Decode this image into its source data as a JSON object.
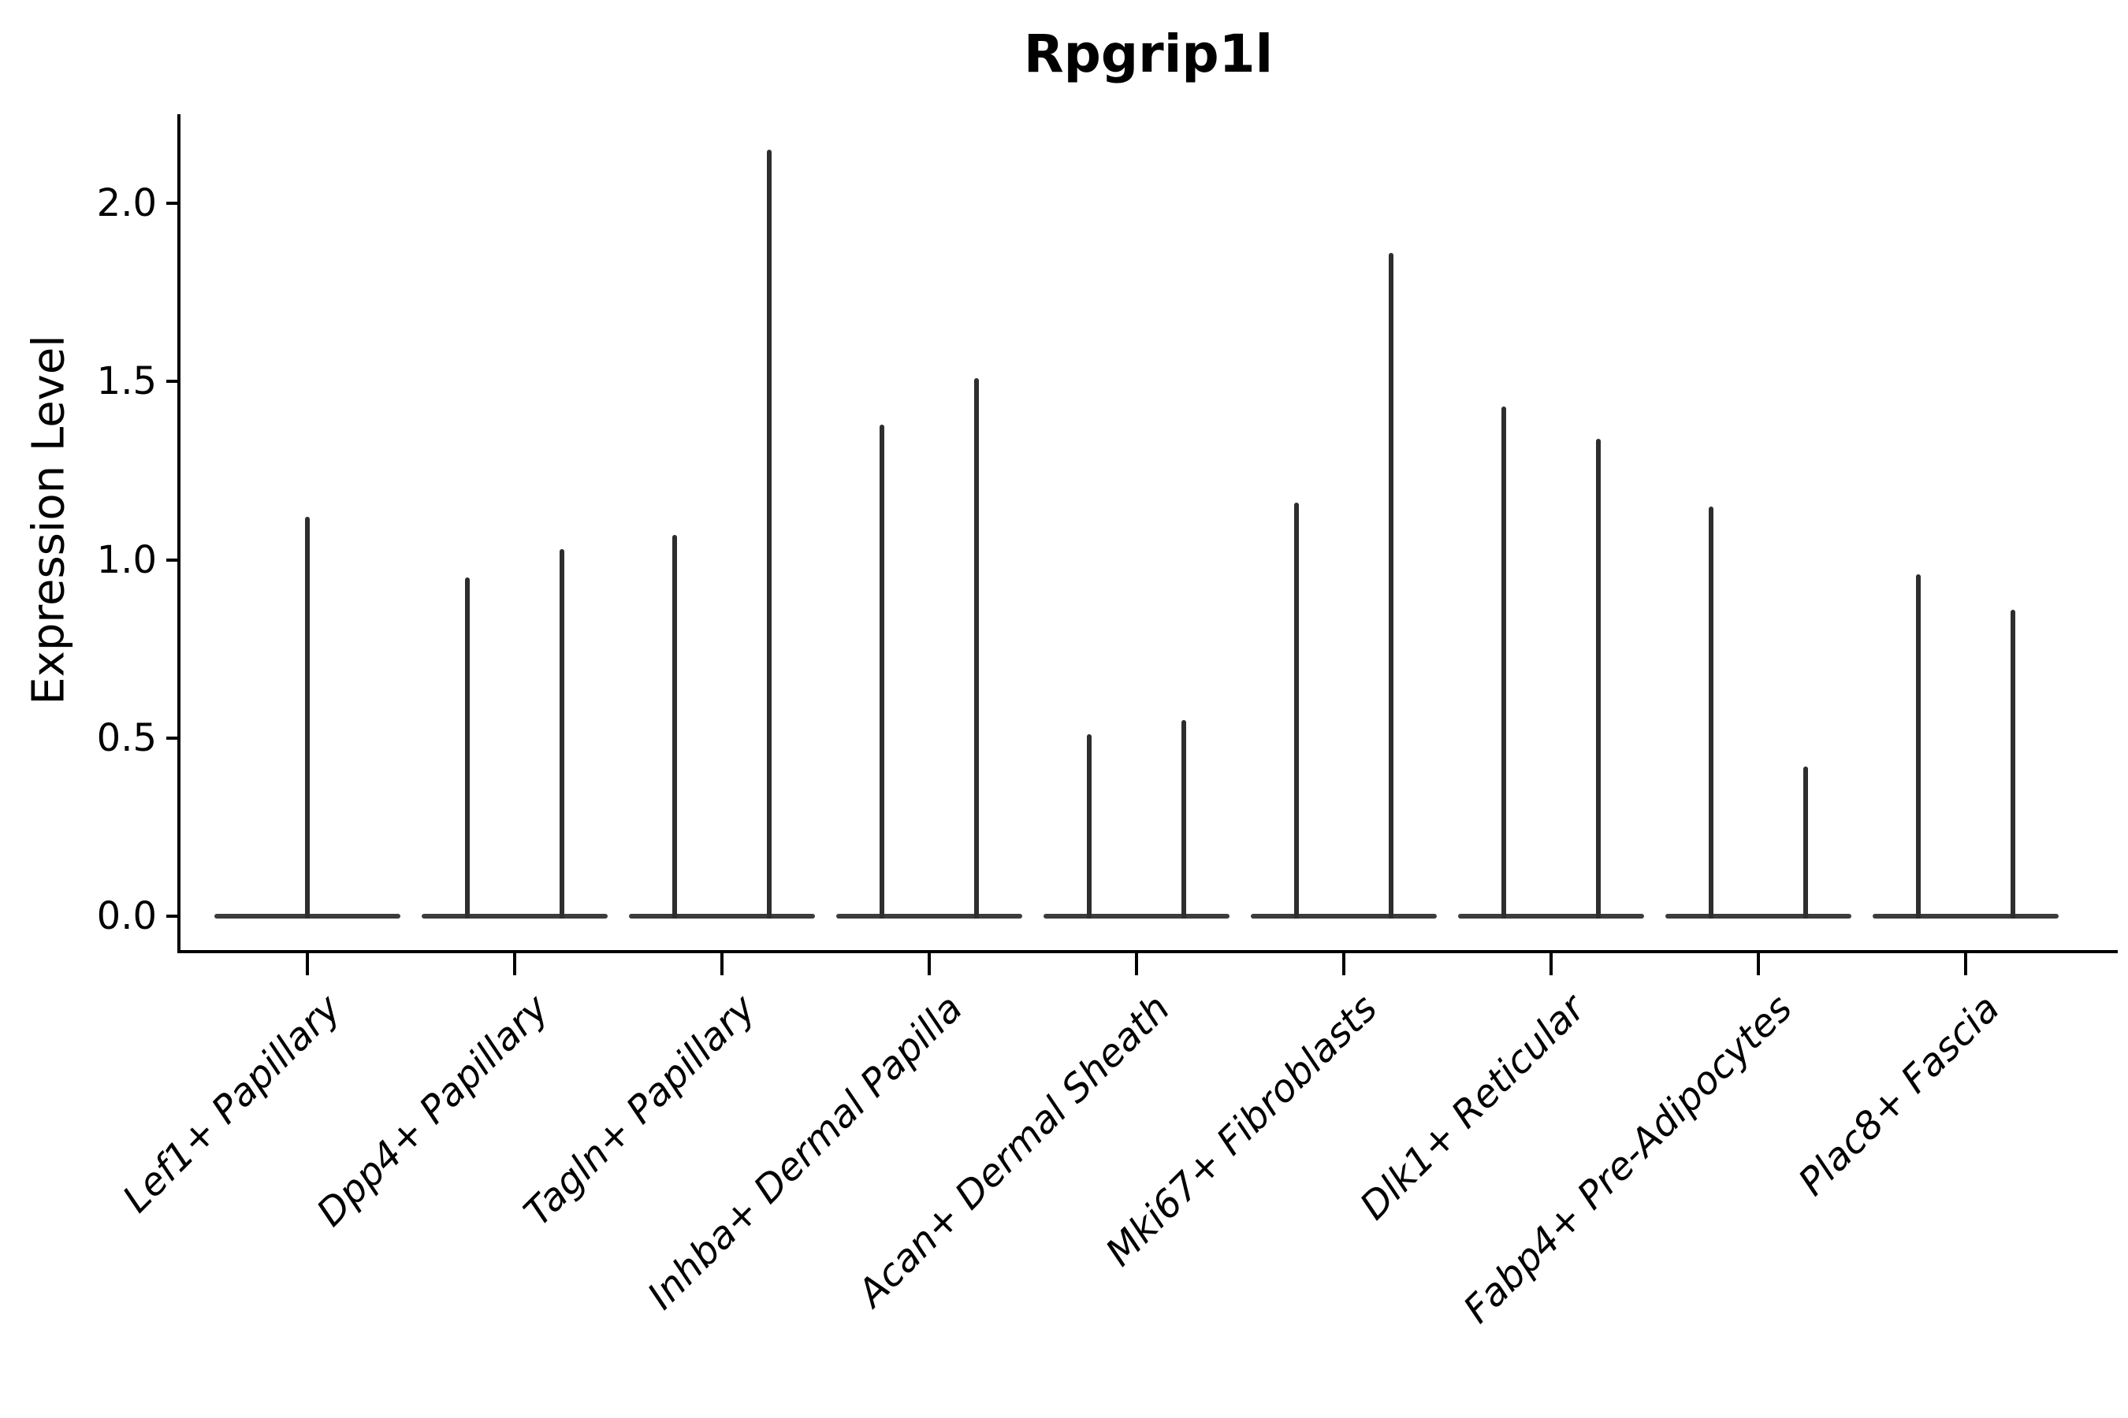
{
  "chart_data": {
    "type": "violin",
    "title": "Rpgrip1l",
    "ylabel": "Expression Level",
    "xlabel": "",
    "yticks": [
      "0.0",
      "0.5",
      "1.0",
      "1.5",
      "2.0"
    ],
    "ylim": [
      -0.1,
      2.25
    ],
    "grid": false,
    "legend": "none",
    "categories": [
      "Lef1+ Papillary",
      "Dpp4+ Papillary",
      "Tagln+ Papillary",
      "Inhba+ Dermal Papilla",
      "Acan+ Dermal Sheath",
      "Mki67+ Fibroblasts",
      "Dlk1+ Reticular",
      "Fabp4+ Pre-Adipocytes",
      "Plac8+ Fascia"
    ],
    "series": [
      {
        "category": "Lef1+ Papillary",
        "violins": [
          {
            "offset": 0,
            "peak": 1.12
          }
        ]
      },
      {
        "category": "Dpp4+ Papillary",
        "violins": [
          {
            "offset": -60,
            "peak": 0.95
          },
          {
            "offset": 60,
            "peak": 1.03
          }
        ]
      },
      {
        "category": "Tagln+ Papillary",
        "violins": [
          {
            "offset": -60,
            "peak": 1.07
          },
          {
            "offset": 60,
            "peak": 2.15
          }
        ]
      },
      {
        "category": "Inhba+ Dermal Papilla",
        "violins": [
          {
            "offset": -60,
            "peak": 1.38
          },
          {
            "offset": 60,
            "peak": 1.51
          }
        ]
      },
      {
        "category": "Acan+ Dermal Sheath",
        "violins": [
          {
            "offset": -60,
            "peak": 0.51
          },
          {
            "offset": 60,
            "peak": 0.55
          }
        ]
      },
      {
        "category": "Mki67+ Fibroblasts",
        "violins": [
          {
            "offset": -60,
            "peak": 1.16
          },
          {
            "offset": 60,
            "peak": 1.86
          }
        ]
      },
      {
        "category": "Dlk1+ Reticular",
        "violins": [
          {
            "offset": -60,
            "peak": 1.43
          },
          {
            "offset": 60,
            "peak": 1.34
          }
        ]
      },
      {
        "category": "Fabp4+ Pre-Adipocytes",
        "violins": [
          {
            "offset": -60,
            "peak": 1.15
          },
          {
            "offset": 60,
            "peak": 0.42
          }
        ]
      },
      {
        "category": "Plac8+ Fascia",
        "violins": [
          {
            "offset": -60,
            "peak": 0.96
          },
          {
            "offset": 60,
            "peak": 0.86
          }
        ]
      }
    ],
    "note_all_violins_collapsed_at_zero": "each violin is a flat bar at y=0 with a thin vertical spike up to its peak value",
    "colors": {
      "spike": "#2e2e2e",
      "baseline": "#3c3c3c",
      "axis": "#000000",
      "background": "#ffffff",
      "text": "#000000"
    }
  }
}
